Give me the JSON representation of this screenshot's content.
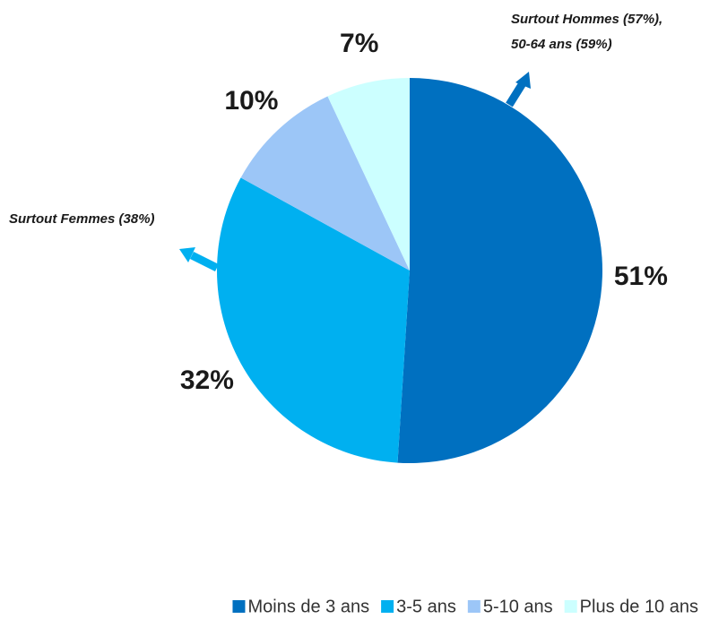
{
  "chart_data": {
    "type": "pie",
    "categories": [
      "Moins de 3 ans",
      "3-5 ans",
      "5-10 ans",
      "Plus de 10 ans"
    ],
    "values": [
      51,
      32,
      10,
      7
    ],
    "value_labels": [
      "51%",
      "32%",
      "10%",
      "7%"
    ],
    "colors": [
      "#0070c0",
      "#00b0f0",
      "#9cc6f7",
      "#ccffff"
    ],
    "annotations": [
      [
        "Surtout Hommes (57%),",
        "50-64 ans (59%)"
      ],
      [
        "Surtout Femmes (38%)"
      ]
    ],
    "legend": "bottom"
  }
}
